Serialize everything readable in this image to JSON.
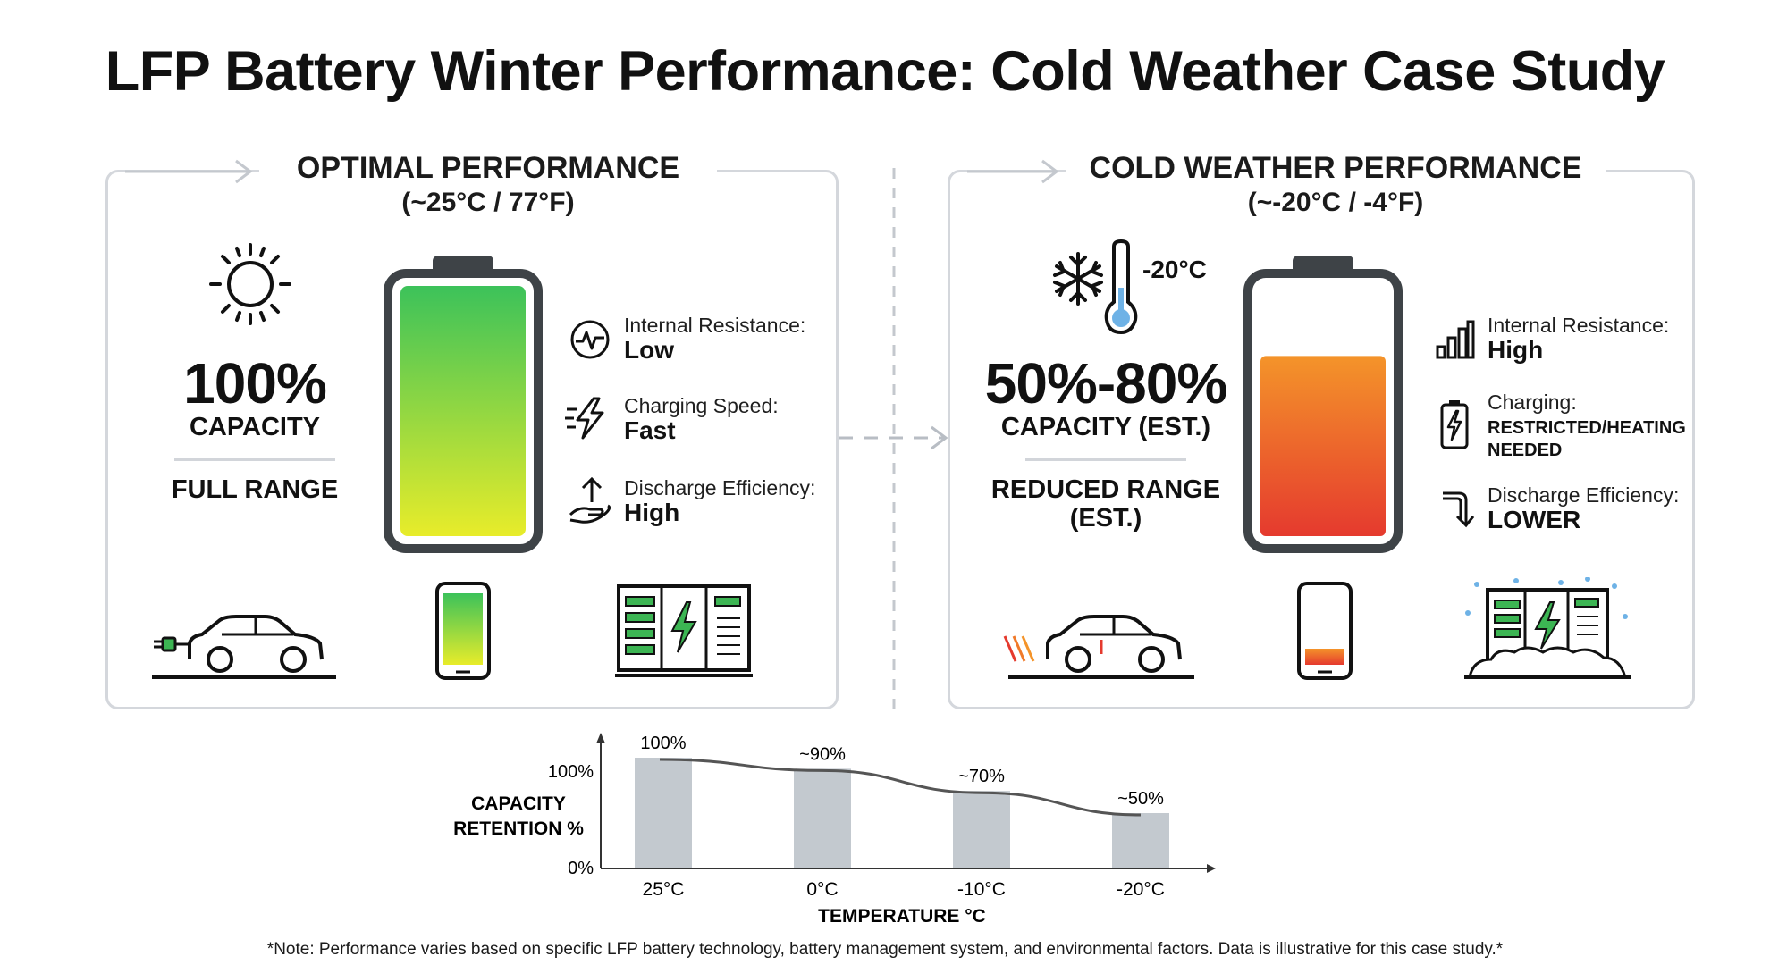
{
  "title": "LFP Battery Winter Performance: Cold Weather Case Study",
  "optimal": {
    "heading": "OPTIMAL PERFORMANCE",
    "temp": "(~25°C / 77°F)",
    "capacity_value": "100%",
    "capacity_label": "CAPACITY",
    "range_label": "FULL RANGE",
    "battery_fill": 1.0,
    "stats": [
      {
        "label": "Internal Resistance:",
        "value": "Low",
        "icon": "pulse-icon"
      },
      {
        "label": "Charging Speed:",
        "value": "Fast",
        "icon": "lightning-icon"
      },
      {
        "label": "Discharge Efficiency:",
        "value": "High",
        "icon": "hand-arrow-icon"
      }
    ],
    "devices": [
      "ev-car-icon",
      "phone-icon",
      "storage-cabinet-icon"
    ],
    "colors": {
      "top": "#3cc25a",
      "bottom": "#e8ec2a"
    }
  },
  "cold": {
    "heading": "COLD WEATHER PERFORMANCE",
    "temp": "(~-20°C / -4°F)",
    "thermo_label": "-20°C",
    "capacity_value": "50%-80%",
    "capacity_label": "CAPACITY (EST.)",
    "range_label": "REDUCED RANGE\n(EST.)",
    "battery_fill": 0.72,
    "stats": [
      {
        "label": "Internal Resistance:",
        "value": "High",
        "icon": "bars-icon"
      },
      {
        "label": "Charging:",
        "value": "RESTRICTED/HEATING NEEDED",
        "icon": "battery-bolt-icon"
      },
      {
        "label": "Discharge Efficiency:",
        "value": "LOWER",
        "icon": "down-arrow-icon"
      }
    ],
    "devices": [
      "cold-car-icon",
      "low-phone-icon",
      "snow-cabinet-icon"
    ],
    "colors": {
      "top": "#f4942a",
      "bottom": "#e53a2e"
    }
  },
  "chart_data": {
    "type": "bar",
    "categories": [
      "25°C",
      "0°C",
      "-10°C",
      "-20°C"
    ],
    "values": [
      100,
      90,
      70,
      50
    ],
    "data_labels": [
      "100%",
      "~90%",
      "~70%",
      "~50%"
    ],
    "y_ticks": [
      "0%",
      "100%"
    ],
    "ylabel": "CAPACITY\nRETENTION %",
    "xlabel": "TEMPERATURE °C",
    "ylim": [
      0,
      100
    ],
    "trend_line": true,
    "bar_color": "#c3c9cf",
    "line_color": "#555555"
  },
  "note": "*Note: Performance varies based on specific LFP battery technology, battery management system, and environmental factors. Data is illustrative for this case study.*"
}
